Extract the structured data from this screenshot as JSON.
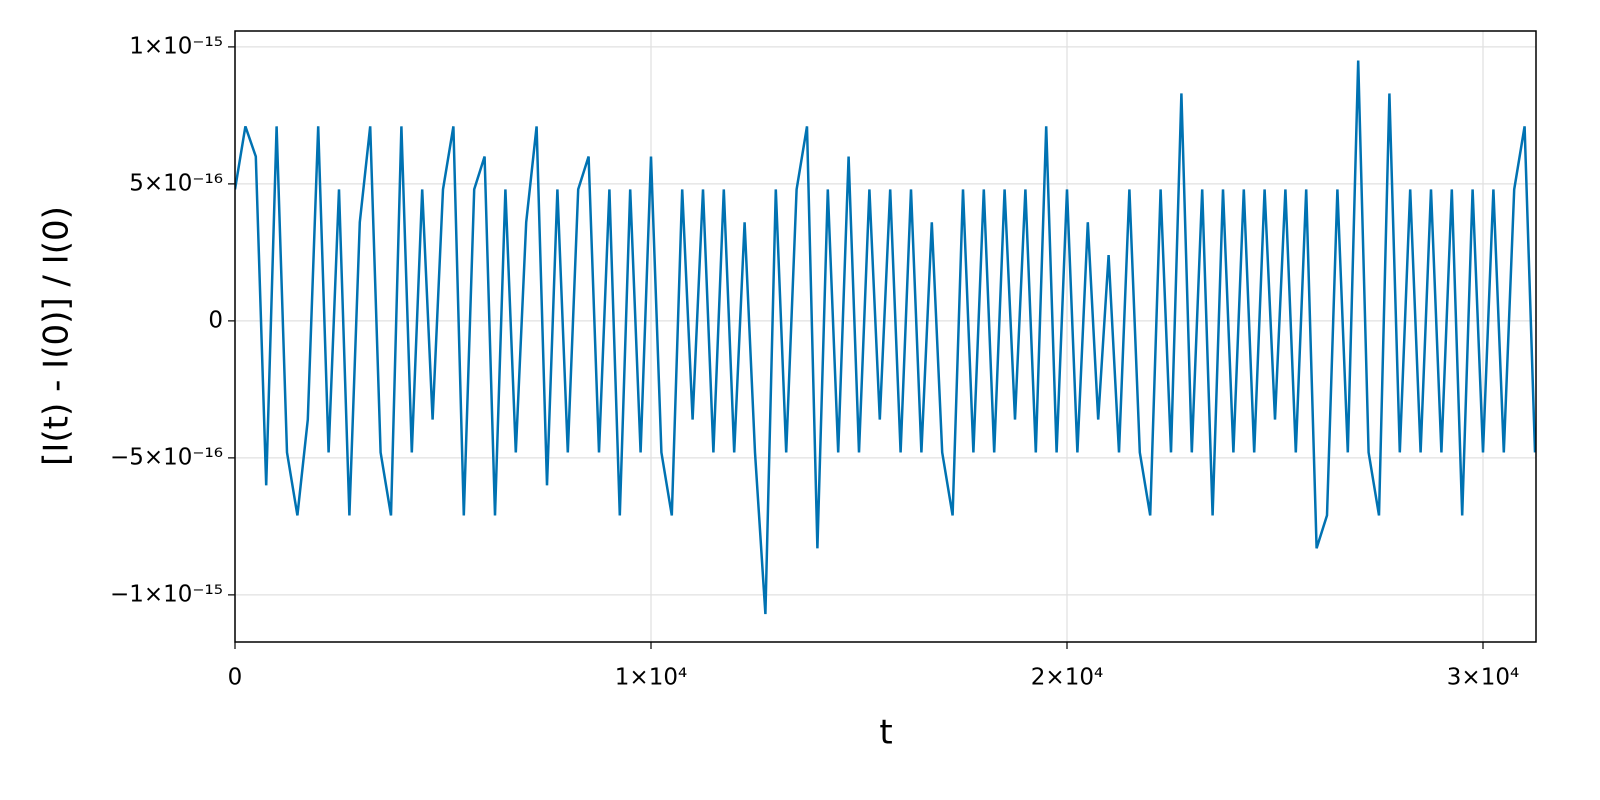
{
  "chart_data": {
    "type": "line",
    "xlabel": "t",
    "ylabel": "[I(t) - I(0)] / I(0)",
    "xlim": [
      0,
      31274
    ],
    "ylim": [
      -1.172e-15,
      1.058e-15
    ],
    "xticks": [
      0,
      {
        "value": 10000,
        "label": "1×10⁴"
      },
      {
        "value": 20000,
        "label": "2×10⁴"
      },
      {
        "value": 30000,
        "label": "3×10⁴"
      }
    ],
    "yticks": [
      {
        "value": -1e-15,
        "label": "−1×10⁻¹⁵"
      },
      {
        "value": -5e-16,
        "label": "−5×10⁻¹⁶"
      },
      0,
      {
        "value": 5e-16,
        "label": "5×10⁻¹⁶"
      },
      {
        "value": 1e-15,
        "label": "1×10⁻¹⁵"
      }
    ],
    "grid": true,
    "series": [
      {
        "color": "#0072b2",
        "x": [
          0,
          250,
          500,
          750,
          1000,
          1250,
          1500,
          1750,
          2000,
          2250,
          2500,
          2750,
          3000,
          3250,
          3500,
          3750,
          4000,
          4250,
          4500,
          4750,
          5000,
          5250,
          5500,
          5750,
          6000,
          6250,
          6500,
          6750,
          7000,
          7250,
          7500,
          7750,
          8000,
          8250,
          8500,
          8750,
          9000,
          9250,
          9500,
          9750,
          10000,
          10250,
          10500,
          10750,
          11000,
          11250,
          11500,
          11750,
          12000,
          12250,
          12500,
          12750,
          13000,
          13250,
          13500,
          13750,
          14000,
          14250,
          14500,
          14750,
          15000,
          15250,
          15500,
          15750,
          16000,
          16250,
          16500,
          16750,
          17000,
          17250,
          17500,
          17750,
          18000,
          18250,
          18500,
          18750,
          19000,
          19250,
          19500,
          19750,
          20000,
          20250,
          20500,
          20750,
          21000,
          21250,
          21500,
          21750,
          22000,
          22250,
          22500,
          22750,
          23000,
          23250,
          23500,
          23750,
          24000,
          24250,
          24500,
          24750,
          25000,
          25250,
          25500,
          25750,
          26000,
          26250,
          26500,
          26750,
          27000,
          27250,
          27500,
          27750,
          28000,
          28250,
          28500,
          28750,
          29000,
          29250,
          29500,
          29750,
          30000,
          30250,
          30500,
          30750,
          31000,
          31250
        ],
        "values": [
          4.8e-16,
          7.1e-16,
          6e-16,
          -6e-16,
          7.1e-16,
          -4.8e-16,
          -7.1e-16,
          -3.6e-16,
          7.1e-16,
          -4.8e-16,
          4.8e-16,
          -7.1e-16,
          3.6e-16,
          7.1e-16,
          -4.8e-16,
          -7.1e-16,
          7.1e-16,
          -4.8e-16,
          4.8e-16,
          -3.6e-16,
          4.8e-16,
          7.1e-16,
          -7.1e-16,
          4.8e-16,
          6e-16,
          -7.1e-16,
          4.8e-16,
          -4.8e-16,
          3.6e-16,
          7.1e-16,
          -6e-16,
          4.8e-16,
          -4.8e-16,
          4.8e-16,
          6e-16,
          -4.8e-16,
          4.8e-16,
          -7.1e-16,
          4.8e-16,
          -4.8e-16,
          6e-16,
          -4.8e-16,
          -7.1e-16,
          4.8e-16,
          -3.6e-16,
          4.8e-16,
          -4.8e-16,
          4.8e-16,
          -4.8e-16,
          3.6e-16,
          -4.8e-16,
          -1.07e-15,
          4.8e-16,
          -4.8e-16,
          4.8e-16,
          7.1e-16,
          -8.3e-16,
          4.8e-16,
          -4.8e-16,
          6e-16,
          -4.8e-16,
          4.8e-16,
          -3.6e-16,
          4.8e-16,
          -4.8e-16,
          4.8e-16,
          -4.8e-16,
          3.6e-16,
          -4.8e-16,
          -7.1e-16,
          4.8e-16,
          -4.8e-16,
          4.8e-16,
          -4.8e-16,
          4.8e-16,
          -3.6e-16,
          4.8e-16,
          -4.8e-16,
          7.1e-16,
          -4.8e-16,
          4.8e-16,
          -4.8e-16,
          3.6e-16,
          -3.6e-16,
          2.4e-16,
          -4.8e-16,
          4.8e-16,
          -4.8e-16,
          -7.1e-16,
          4.8e-16,
          -4.8e-16,
          8.3e-16,
          -4.8e-16,
          4.8e-16,
          -7.1e-16,
          4.8e-16,
          -4.8e-16,
          4.8e-16,
          -4.8e-16,
          4.8e-16,
          -3.6e-16,
          4.8e-16,
          -4.8e-16,
          4.8e-16,
          -8.3e-16,
          -7.1e-16,
          4.8e-16,
          -4.8e-16,
          9.5e-16,
          -4.8e-16,
          -7.1e-16,
          8.3e-16,
          -4.8e-16,
          4.8e-16,
          -4.8e-16,
          4.8e-16,
          -4.8e-16,
          4.8e-16,
          -7.1e-16,
          4.8e-16,
          -4.8e-16,
          4.8e-16,
          -4.8e-16,
          4.8e-16,
          7.1e-16,
          -4.8e-16
        ]
      }
    ]
  }
}
